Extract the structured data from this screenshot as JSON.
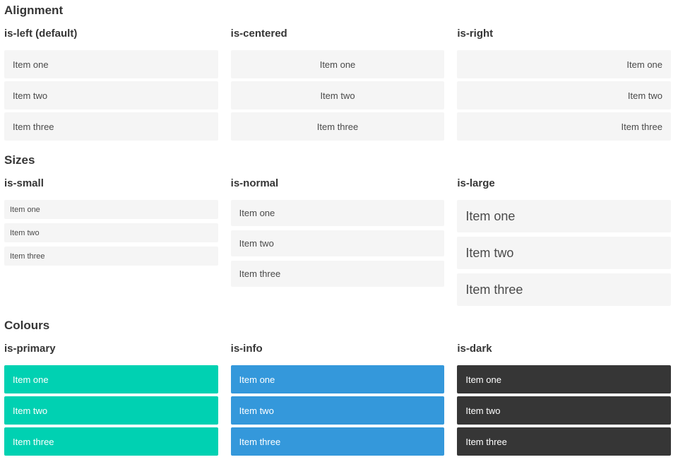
{
  "colors": {
    "primary": "#00d1b2",
    "info": "#3498db",
    "dark": "#363636",
    "item_background": "#f5f5f5",
    "item_text": "#4a4a4a",
    "heading_text": "#363636",
    "item_text_on_color": "#ffffff"
  },
  "sections": [
    {
      "title": "Alignment",
      "columns": [
        {
          "label": "is-left (default)",
          "items": [
            "Item one",
            "Item two",
            "Item three"
          ]
        },
        {
          "label": "is-centered",
          "items": [
            "Item one",
            "Item two",
            "Item three"
          ]
        },
        {
          "label": "is-right",
          "items": [
            "Item one",
            "Item two",
            "Item three"
          ]
        }
      ]
    },
    {
      "title": "Sizes",
      "columns": [
        {
          "label": "is-small",
          "items": [
            "Item one",
            "Item two",
            "Item three"
          ]
        },
        {
          "label": "is-normal",
          "items": [
            "Item one",
            "Item two",
            "Item three"
          ]
        },
        {
          "label": "is-large",
          "items": [
            "Item one",
            "Item two",
            "Item three"
          ]
        }
      ]
    },
    {
      "title": "Colours",
      "columns": [
        {
          "label": "is-primary",
          "items": [
            "Item one",
            "Item two",
            "Item three"
          ]
        },
        {
          "label": "is-info",
          "items": [
            "Item one",
            "Item two",
            "Item three"
          ]
        },
        {
          "label": "is-dark",
          "items": [
            "Item one",
            "Item two",
            "Item three"
          ]
        }
      ]
    }
  ]
}
